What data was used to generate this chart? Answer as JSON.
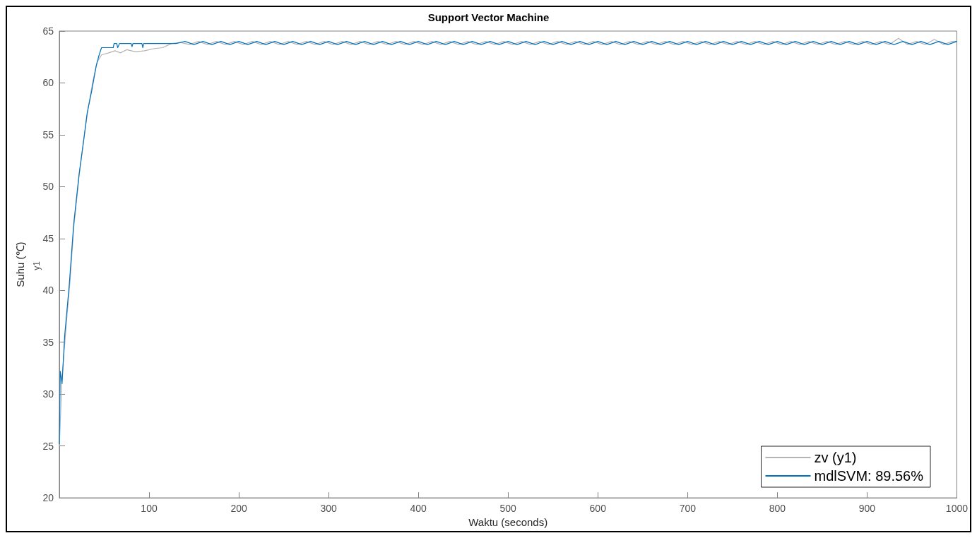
{
  "chart_data": {
    "type": "line",
    "title": "Support Vector Machine",
    "xlabel": "Waktu (seconds)",
    "ylabel": "Suhu (℃)",
    "annotations": [
      "y1"
    ],
    "xlim": [
      0,
      1000
    ],
    "xticks": [
      100,
      200,
      300,
      400,
      500,
      600,
      700,
      800,
      900,
      1000
    ],
    "ylim": [
      20,
      65
    ],
    "yticks": [
      20,
      25,
      30,
      35,
      40,
      45,
      50,
      55,
      60,
      65
    ],
    "grid": false,
    "legend": "bottom right",
    "marker": "none",
    "line_style": "solid",
    "series": [
      {
        "name": "zv (y1)",
        "color": "#b3b3b3",
        "x": [
          0,
          3,
          8,
          12,
          16,
          22,
          27,
          32,
          37,
          42,
          47,
          55,
          62,
          68,
          75,
          85,
          95,
          105,
          115,
          125,
          135,
          145,
          155,
          165,
          175,
          185,
          195,
          205,
          215,
          225,
          235,
          245,
          255,
          265,
          275,
          285,
          295,
          305,
          315,
          325,
          335,
          345,
          355,
          365,
          375,
          385,
          395,
          405,
          415,
          425,
          435,
          445,
          455,
          465,
          475,
          485,
          495,
          505,
          515,
          525,
          535,
          545,
          555,
          565,
          575,
          585,
          595,
          605,
          615,
          625,
          635,
          645,
          655,
          665,
          675,
          685,
          695,
          705,
          715,
          725,
          735,
          745,
          755,
          765,
          775,
          785,
          795,
          805,
          815,
          825,
          835,
          845,
          855,
          865,
          875,
          885,
          895,
          905,
          915,
          925,
          935,
          945,
          955,
          965,
          975,
          985,
          995,
          1000
        ],
        "values": [
          25.0,
          31.6,
          37.0,
          41.0,
          46.0,
          51.0,
          54.4,
          57.5,
          60.0,
          62.0,
          62.7,
          62.9,
          63.1,
          62.9,
          63.2,
          63.0,
          63.1,
          63.3,
          63.4,
          63.8,
          63.9,
          63.7,
          64.0,
          63.7,
          64.0,
          63.7,
          64.0,
          63.7,
          64.0,
          63.7,
          64.0,
          63.7,
          64.0,
          63.7,
          64.0,
          63.7,
          64.0,
          63.7,
          64.0,
          63.7,
          64.0,
          63.7,
          64.0,
          63.7,
          64.0,
          63.7,
          64.0,
          63.7,
          64.0,
          63.7,
          64.0,
          63.7,
          64.0,
          63.7,
          64.0,
          63.7,
          64.0,
          63.7,
          64.0,
          63.7,
          64.0,
          63.7,
          64.0,
          63.7,
          64.0,
          63.7,
          64.0,
          63.7,
          64.0,
          63.7,
          64.0,
          63.7,
          64.0,
          63.7,
          64.0,
          63.7,
          64.0,
          63.7,
          64.0,
          63.7,
          64.0,
          63.7,
          64.0,
          63.7,
          64.0,
          63.7,
          64.0,
          63.7,
          64.0,
          63.7,
          64.0,
          63.7,
          64.0,
          63.7,
          64.0,
          63.7,
          64.0,
          63.7,
          64.0,
          63.7,
          64.3,
          63.7,
          64.0,
          63.7,
          64.2,
          63.7,
          64.0,
          64.0
        ]
      },
      {
        "name": "mdlSVM: 89.56%",
        "color": "#0072bd",
        "x": [
          0,
          1,
          3,
          6,
          11,
          16,
          22,
          27,
          31,
          36,
          41,
          44,
          47,
          60,
          61,
          64,
          65,
          67,
          80,
          81,
          82,
          92,
          93,
          94,
          130,
          140,
          150,
          160,
          170,
          180,
          190,
          200,
          210,
          220,
          230,
          240,
          250,
          260,
          270,
          280,
          290,
          300,
          310,
          320,
          330,
          340,
          350,
          360,
          370,
          380,
          390,
          400,
          410,
          420,
          430,
          440,
          450,
          460,
          470,
          480,
          490,
          500,
          510,
          520,
          530,
          540,
          550,
          560,
          570,
          580,
          590,
          600,
          610,
          620,
          630,
          640,
          650,
          660,
          670,
          680,
          690,
          700,
          710,
          720,
          730,
          740,
          750,
          760,
          770,
          780,
          790,
          800,
          810,
          820,
          830,
          840,
          850,
          860,
          870,
          880,
          890,
          900,
          910,
          920,
          930,
          940,
          950,
          960,
          970,
          980,
          990,
          1000
        ],
        "values": [
          25.2,
          32.2,
          31.0,
          35.7,
          40.5,
          46.4,
          51.2,
          54.4,
          57.1,
          59.2,
          61.6,
          62.6,
          63.4,
          63.4,
          63.8,
          63.8,
          63.4,
          63.8,
          63.8,
          63.5,
          63.8,
          63.8,
          63.4,
          63.8,
          63.8,
          64.0,
          63.7,
          64.0,
          63.7,
          64.0,
          63.7,
          64.0,
          63.7,
          64.0,
          63.7,
          64.0,
          63.7,
          64.0,
          63.7,
          64.0,
          63.7,
          64.0,
          63.7,
          64.0,
          63.7,
          64.0,
          63.7,
          64.0,
          63.7,
          64.0,
          63.7,
          64.0,
          63.7,
          64.0,
          63.7,
          64.0,
          63.7,
          64.0,
          63.7,
          64.0,
          63.7,
          64.0,
          63.7,
          64.0,
          63.7,
          64.0,
          63.7,
          64.0,
          63.7,
          64.0,
          63.7,
          64.0,
          63.7,
          64.0,
          63.7,
          64.0,
          63.7,
          64.0,
          63.7,
          64.0,
          63.7,
          64.0,
          63.7,
          64.0,
          63.7,
          64.0,
          63.7,
          64.0,
          63.7,
          64.0,
          63.7,
          64.0,
          63.7,
          64.0,
          63.7,
          64.0,
          63.7,
          64.0,
          63.7,
          64.0,
          63.7,
          64.0,
          63.7,
          64.0,
          63.7,
          64.0,
          63.7,
          64.0,
          63.7,
          64.0,
          63.7,
          64.0
        ]
      }
    ]
  }
}
